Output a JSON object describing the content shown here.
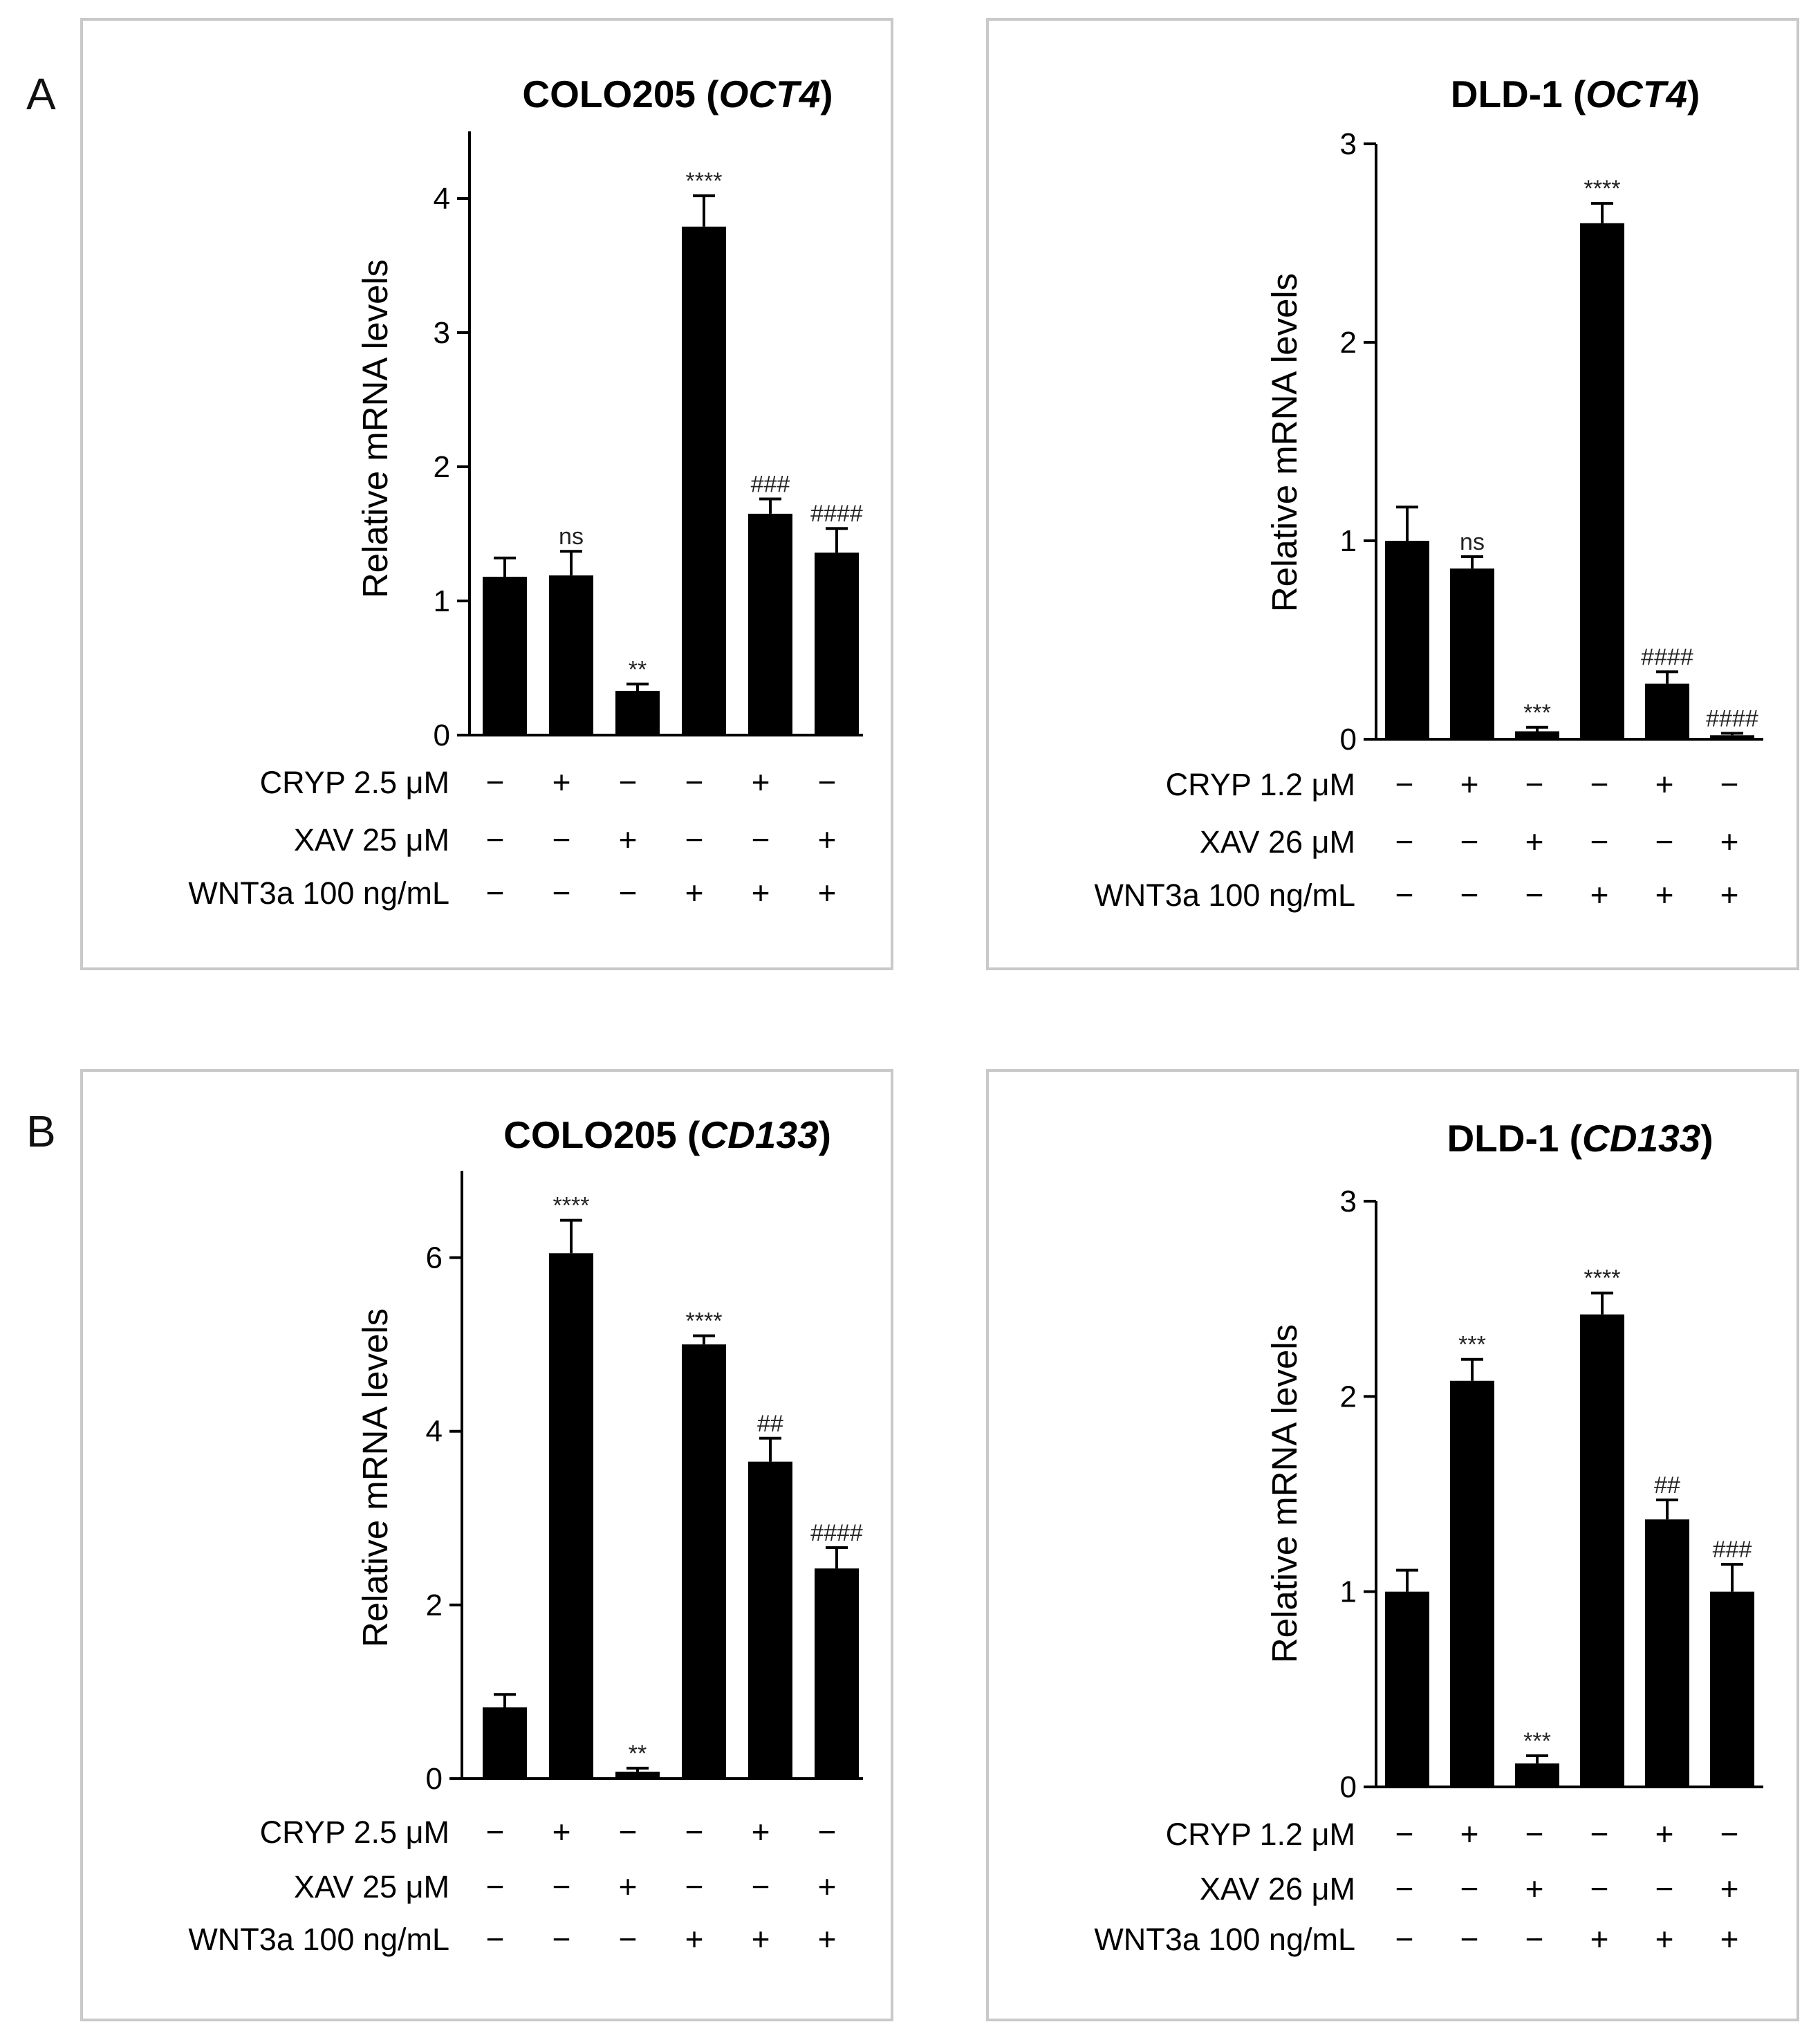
{
  "figure": {
    "panel_letters": [
      "A",
      "B"
    ]
  },
  "chart_data": [
    {
      "type": "bar",
      "title_main": "COLO205 (",
      "title_gene": "OCT4",
      "title_close": ")",
      "ylabel": "Relative mRNA levels",
      "ylim": [
        0,
        4.5
      ],
      "yticks": [
        0,
        1,
        2,
        3,
        4
      ],
      "values": [
        1.18,
        1.19,
        0.33,
        3.79,
        1.65,
        1.36
      ],
      "errors": [
        0.14,
        0.18,
        0.05,
        0.23,
        0.11,
        0.18
      ],
      "annotations": [
        "",
        "ns",
        "**",
        "****",
        "###",
        "####"
      ],
      "conditions": [
        {
          "label": "CRYP 2.5 μM",
          "signs": [
            "−",
            "+",
            "−",
            "−",
            "+",
            "−"
          ]
        },
        {
          "label": "XAV 25 μM",
          "signs": [
            "−",
            "−",
            "+",
            "−",
            "−",
            "+"
          ]
        },
        {
          "label": "WNT3a 100 ng/mL",
          "signs": [
            "−",
            "−",
            "−",
            "+",
            "+",
            "+"
          ]
        }
      ]
    },
    {
      "type": "bar",
      "title_main": "DLD-1 (",
      "title_gene": "OCT4",
      "title_close": ")",
      "ylabel": "Relative mRNA levels",
      "ylim": [
        0,
        3
      ],
      "yticks": [
        0,
        1,
        2,
        3
      ],
      "values": [
        1.0,
        0.86,
        0.04,
        2.6,
        0.28,
        0.02
      ],
      "errors": [
        0.17,
        0.06,
        0.02,
        0.1,
        0.06,
        0.01
      ],
      "annotations": [
        "",
        "ns",
        "***",
        "****",
        "####",
        "####"
      ],
      "conditions": [
        {
          "label": "CRYP 1.2 μM",
          "signs": [
            "−",
            "+",
            "−",
            "−",
            "+",
            "−"
          ]
        },
        {
          "label": "XAV 26 μM",
          "signs": [
            "−",
            "−",
            "+",
            "−",
            "−",
            "+"
          ]
        },
        {
          "label": "WNT3a 100 ng/mL",
          "signs": [
            "−",
            "−",
            "−",
            "+",
            "+",
            "+"
          ]
        }
      ]
    },
    {
      "type": "bar",
      "title_main": "COLO205 (",
      "title_gene": "CD133",
      "title_close": ")",
      "ylabel": "Relative mRNA levels",
      "ylim": [
        0,
        7
      ],
      "yticks": [
        0,
        2,
        4,
        6
      ],
      "values": [
        0.82,
        6.05,
        0.08,
        5.0,
        3.65,
        2.42
      ],
      "errors": [
        0.15,
        0.38,
        0.04,
        0.1,
        0.27,
        0.24
      ],
      "annotations": [
        "",
        "****",
        "**",
        "****",
        "##",
        "####"
      ],
      "conditions": [
        {
          "label": "CRYP 2.5 μM",
          "signs": [
            "−",
            "+",
            "−",
            "−",
            "+",
            "−"
          ]
        },
        {
          "label": "XAV 25 μM",
          "signs": [
            "−",
            "−",
            "+",
            "−",
            "−",
            "+"
          ]
        },
        {
          "label": "WNT3a 100 ng/mL",
          "signs": [
            "−",
            "−",
            "−",
            "+",
            "+",
            "+"
          ]
        }
      ]
    },
    {
      "type": "bar",
      "title_main": "DLD-1 (",
      "title_gene": "CD133",
      "title_close": ")",
      "ylabel": "Relative mRNA levels",
      "ylim": [
        0,
        3
      ],
      "yticks": [
        0,
        1,
        2,
        3
      ],
      "values": [
        1.0,
        2.08,
        0.12,
        2.42,
        1.37,
        1.0
      ],
      "errors": [
        0.11,
        0.11,
        0.04,
        0.11,
        0.1,
        0.14
      ],
      "annotations": [
        "",
        "***",
        "***",
        "****",
        "##",
        "###"
      ],
      "conditions": [
        {
          "label": "CRYP 1.2 μM",
          "signs": [
            "−",
            "+",
            "−",
            "−",
            "+",
            "−"
          ]
        },
        {
          "label": "XAV 26 μM",
          "signs": [
            "−",
            "−",
            "+",
            "−",
            "−",
            "+"
          ]
        },
        {
          "label": "WNT3a 100 ng/mL",
          "signs": [
            "−",
            "−",
            "−",
            "+",
            "+",
            "+"
          ]
        }
      ]
    }
  ]
}
